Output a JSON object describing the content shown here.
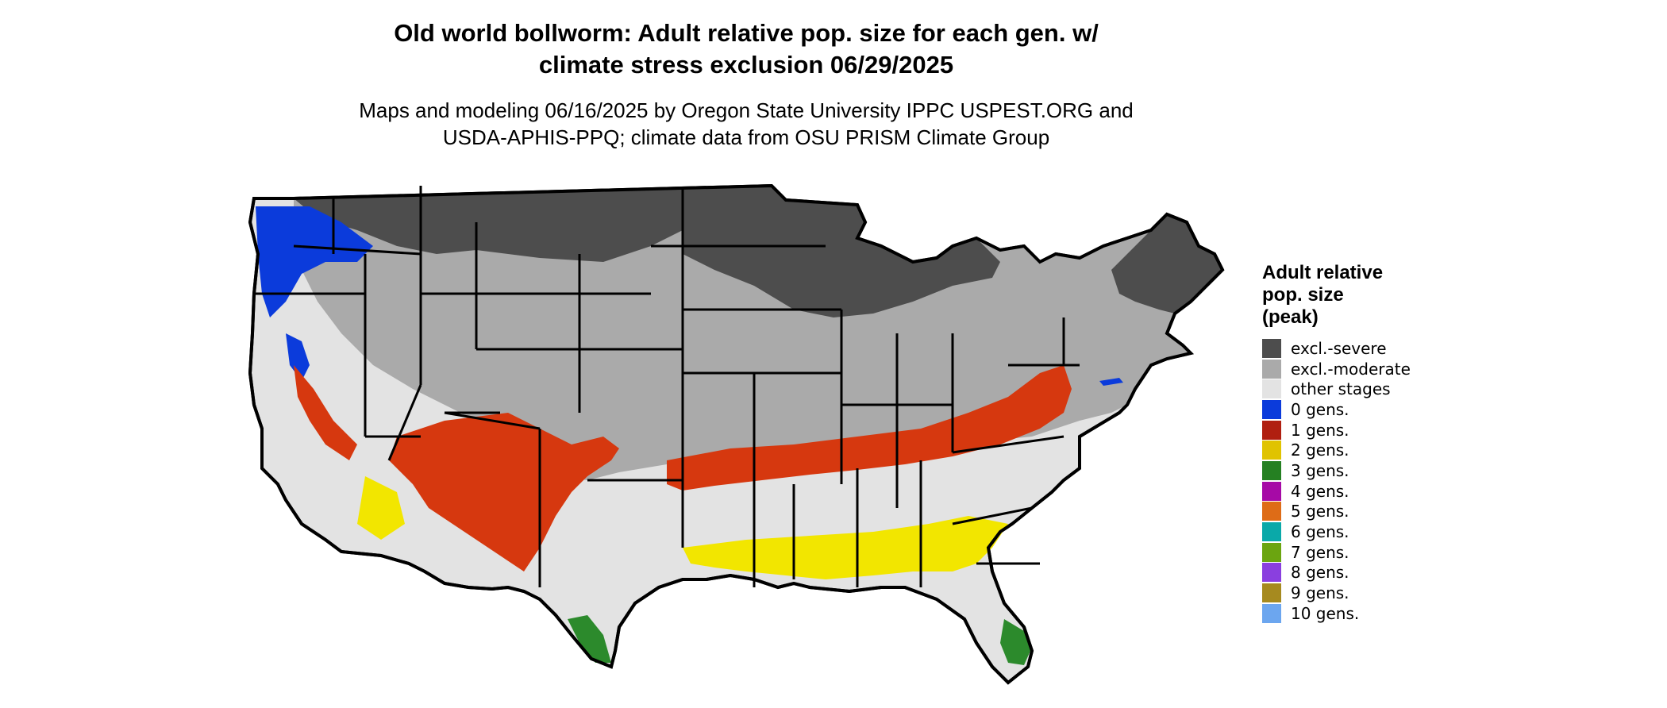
{
  "title_lines": [
    "Old world bollworm: Adult relative pop. size for each gen. w/",
    "climate stress exclusion 06/29/2025"
  ],
  "subtitle_lines": [
    "Maps and modeling 06/16/2025 by Oregon State University IPPC USPEST.ORG and",
    "USDA-APHIS-PPQ; climate data from OSU PRISM Climate Group"
  ],
  "legend": {
    "title_lines": [
      "Adult relative",
      "pop. size",
      "(peak)"
    ],
    "items": [
      {
        "label": "excl.-severe",
        "color": "#4d4d4d"
      },
      {
        "label": "excl.-moderate",
        "color": "#aaaaaa"
      },
      {
        "label": "other stages",
        "color": "#e3e3e3"
      },
      {
        "label": "0 gens.",
        "color": "#0b3bdb"
      },
      {
        "label": "1 gens.",
        "color": "#b01f10"
      },
      {
        "label": "2 gens.",
        "color": "#e0c300"
      },
      {
        "label": "3 gens.",
        "color": "#258022"
      },
      {
        "label": "4 gens.",
        "color": "#a60aa6"
      },
      {
        "label": "5 gens.",
        "color": "#de6c17"
      },
      {
        "label": "6 gens.",
        "color": "#0aa9a9"
      },
      {
        "label": "7 gens.",
        "color": "#6ba510"
      },
      {
        "label": "8 gens.",
        "color": "#8a3fdf"
      },
      {
        "label": "9 gens.",
        "color": "#a68a1f"
      },
      {
        "label": "10 gens.",
        "color": "#6ca6ef"
      }
    ]
  },
  "map_colors": {
    "land": "#e3e3e3",
    "excl_moderate": "#aaaaaa",
    "excl_severe": "#4d4d4d",
    "zero_gen": "#0b3bdb",
    "one_gen": "#d6380f",
    "two_gen": "#f2e600",
    "three_gen": "#2c8a2c",
    "border": "#000000"
  }
}
